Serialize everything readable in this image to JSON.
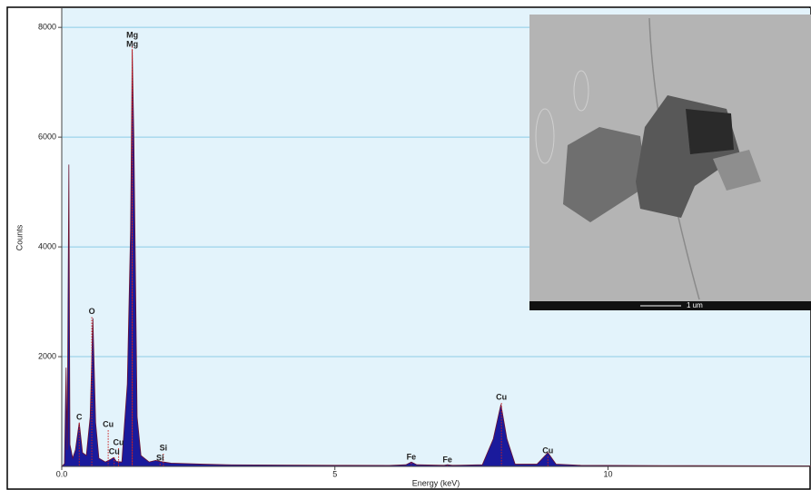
{
  "chart_data": {
    "type": "area",
    "y_label": "Counts",
    "x_label": "Energy (keV)",
    "xlim": [
      0,
      13.7
    ],
    "ylim": [
      0,
      8350
    ],
    "xticks": [
      {
        "value": 0,
        "label": "0.0"
      },
      5,
      10
    ],
    "yticks": [
      2000,
      4000,
      6000,
      8000
    ],
    "grid": true,
    "series": [
      {
        "color": "#1a1a9c",
        "x": [
          0.0,
          0.05,
          0.08,
          0.1,
          0.13,
          0.15,
          0.2,
          0.25,
          0.32,
          0.38,
          0.45,
          0.52,
          0.57,
          0.62,
          0.68,
          0.8,
          0.9,
          0.95,
          1.0,
          1.1,
          1.2,
          1.26,
          1.29,
          1.32,
          1.38,
          1.45,
          1.6,
          1.72,
          1.8,
          2.0,
          2.6,
          3.0,
          4.0,
          5.0,
          6.0,
          6.3,
          6.4,
          6.5,
          7.0,
          7.06,
          7.15,
          7.7,
          7.9,
          8.04,
          8.15,
          8.3,
          8.7,
          8.9,
          9.05,
          9.5,
          11.0,
          13.7
        ],
        "values": [
          0,
          50,
          1800,
          300,
          5500,
          400,
          150,
          300,
          800,
          250,
          200,
          900,
          2700,
          800,
          150,
          80,
          130,
          160,
          90,
          80,
          1500,
          4300,
          7600,
          6000,
          900,
          200,
          80,
          110,
          90,
          60,
          40,
          30,
          25,
          20,
          18,
          30,
          80,
          30,
          20,
          30,
          20,
          30,
          500,
          1130,
          500,
          40,
          40,
          250,
          40,
          20,
          15,
          10
        ]
      }
    ],
    "annotations": [
      {
        "label": "C",
        "x": 0.32,
        "y": 790
      },
      {
        "label": "O",
        "x": 0.55,
        "y": 2720
      },
      {
        "label": "Cu",
        "x": 0.85,
        "y": 660
      },
      {
        "label": "Cu",
        "x": 1.04,
        "y": 330
      },
      {
        "label": "Cu",
        "x": 0.96,
        "y": 165
      },
      {
        "label": "Mg",
        "x": 1.29,
        "y": 7750
      },
      {
        "label": "Mg",
        "x": 1.29,
        "y": 7590
      },
      {
        "label": "Si",
        "x": 1.86,
        "y": 230
      },
      {
        "label": "Si",
        "x": 1.8,
        "y": 50
      },
      {
        "label": "Fe",
        "x": 6.4,
        "y": 65
      },
      {
        "label": "Fe",
        "x": 7.06,
        "y": 15
      },
      {
        "label": "Cu",
        "x": 8.05,
        "y": 1155
      },
      {
        "label": "Cu",
        "x": 8.9,
        "y": 180
      }
    ],
    "annotation_color": "#cc2222"
  },
  "inset": {
    "scale_label": "1 um"
  }
}
